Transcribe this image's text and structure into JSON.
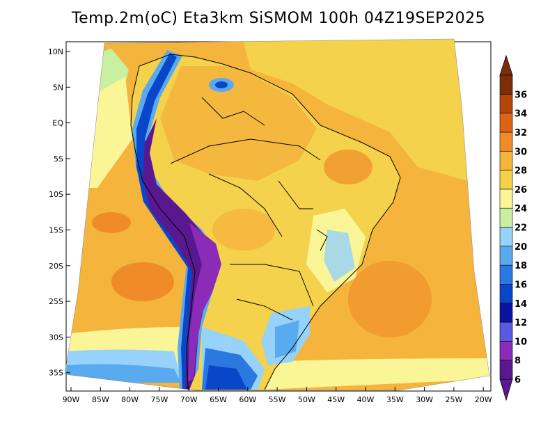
{
  "title": "Temp.2m(oC) Eta3km SiSMOM 100h 04Z19SEP2025",
  "lat_labels": [
    "10N",
    "5N",
    "EQ",
    "5S",
    "10S",
    "15S",
    "20S",
    "25S",
    "30S",
    "35S"
  ],
  "lon_labels": [
    "90W",
    "85W",
    "80W",
    "75W",
    "70W",
    "65W",
    "60W",
    "55W",
    "50W",
    "45W",
    "40W",
    "35W",
    "30W",
    "25W",
    "20W"
  ],
  "colorbar": {
    "labels": [
      "6",
      "8",
      "10",
      "12",
      "14",
      "16",
      "18",
      "20",
      "22",
      "24",
      "26",
      "28",
      "30",
      "32",
      "34",
      "36"
    ],
    "colors": [
      "#5a1890",
      "#8a2cb8",
      "#5a5ae0",
      "#0a14a0",
      "#0a46c8",
      "#2a78e0",
      "#5aaaf0",
      "#96d2fa",
      "#c8f0a0",
      "#faf596",
      "#f5d24b",
      "#f5b43c",
      "#f08c28",
      "#dc6414",
      "#b4460a",
      "#7d2d0a"
    ],
    "end_low_color": "#5a1890",
    "end_high_color": "#7d2d0a"
  },
  "colors": {
    "ocean_base": "#f5b43c",
    "ocean_warm": "#f08c28",
    "land_base": "#f5d24b",
    "land_warm": "#f5b43c",
    "border": "#000000"
  }
}
